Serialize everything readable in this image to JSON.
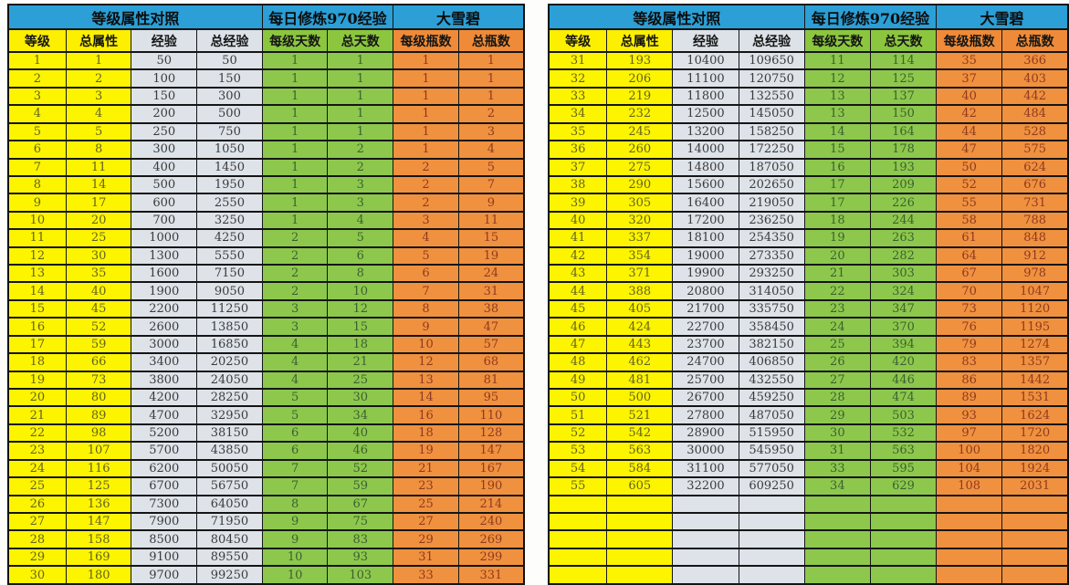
{
  "colors": {
    "header_blue": "#2B9FD6",
    "level_yellow": "#FDF400",
    "exp_gray": "#DDE3E9",
    "days_green": "#8DC84D",
    "bottles_orange": "#F0913F",
    "grid_line": "#151515"
  },
  "chart_data": [
    {
      "type": "table",
      "title": "等级属性对照 1-30",
      "group_headers": [
        {
          "label": "等级属性对照",
          "span": 4
        },
        {
          "label": "每日修炼970经验",
          "span": 2
        },
        {
          "label": "大雪碧",
          "span": 2
        }
      ],
      "columns": [
        "等级",
        "总属性",
        "经验",
        "总经验",
        "每级天数",
        "总天数",
        "每级瓶数",
        "总瓶数"
      ],
      "rows": [
        [
          1,
          1,
          50,
          50,
          1,
          1,
          1,
          1
        ],
        [
          2,
          2,
          100,
          150,
          1,
          1,
          1,
          1
        ],
        [
          3,
          3,
          150,
          300,
          1,
          1,
          1,
          1
        ],
        [
          4,
          4,
          200,
          500,
          1,
          1,
          1,
          2
        ],
        [
          5,
          5,
          250,
          750,
          1,
          1,
          1,
          3
        ],
        [
          6,
          8,
          300,
          1050,
          1,
          2,
          1,
          4
        ],
        [
          7,
          11,
          400,
          1450,
          1,
          2,
          2,
          5
        ],
        [
          8,
          14,
          500,
          1950,
          1,
          3,
          2,
          7
        ],
        [
          9,
          17,
          600,
          2550,
          1,
          3,
          2,
          9
        ],
        [
          10,
          20,
          700,
          3250,
          1,
          4,
          3,
          11
        ],
        [
          11,
          25,
          1000,
          4250,
          2,
          5,
          4,
          15
        ],
        [
          12,
          30,
          1300,
          5550,
          2,
          6,
          5,
          19
        ],
        [
          13,
          35,
          1600,
          7150,
          2,
          8,
          6,
          24
        ],
        [
          14,
          40,
          1900,
          9050,
          2,
          10,
          7,
          31
        ],
        [
          15,
          45,
          2200,
          11250,
          3,
          12,
          8,
          38
        ],
        [
          16,
          52,
          2600,
          13850,
          3,
          15,
          9,
          47
        ],
        [
          17,
          59,
          3000,
          16850,
          4,
          18,
          10,
          57
        ],
        [
          18,
          66,
          3400,
          20250,
          4,
          21,
          12,
          68
        ],
        [
          19,
          73,
          3800,
          24050,
          4,
          25,
          13,
          81
        ],
        [
          20,
          80,
          4200,
          28250,
          5,
          30,
          14,
          95
        ],
        [
          21,
          89,
          4700,
          32950,
          5,
          34,
          16,
          110
        ],
        [
          22,
          98,
          5200,
          38150,
          6,
          40,
          18,
          128
        ],
        [
          23,
          107,
          5700,
          43850,
          6,
          46,
          19,
          147
        ],
        [
          24,
          116,
          6200,
          50050,
          7,
          52,
          21,
          167
        ],
        [
          25,
          125,
          6700,
          56750,
          7,
          59,
          23,
          190
        ],
        [
          26,
          136,
          7300,
          64050,
          8,
          67,
          25,
          214
        ],
        [
          27,
          147,
          7900,
          71950,
          9,
          75,
          27,
          240
        ],
        [
          28,
          158,
          8500,
          80450,
          9,
          83,
          29,
          269
        ],
        [
          29,
          169,
          9100,
          89550,
          10,
          93,
          31,
          299
        ],
        [
          30,
          180,
          9700,
          99250,
          10,
          103,
          33,
          331
        ]
      ],
      "empty_rows": 0
    },
    {
      "type": "table",
      "title": "等级属性对照 31-55",
      "group_headers": [
        {
          "label": "等级属性对照",
          "span": 4
        },
        {
          "label": "每日修炼970经验",
          "span": 2
        },
        {
          "label": "大雪碧",
          "span": 2
        }
      ],
      "columns": [
        "等级",
        "总属性",
        "经验",
        "总经验",
        "每级天数",
        "总天数",
        "每级瓶数",
        "总瓶数"
      ],
      "rows": [
        [
          31,
          193,
          10400,
          109650,
          11,
          114,
          35,
          366
        ],
        [
          32,
          206,
          11100,
          120750,
          12,
          125,
          37,
          403
        ],
        [
          33,
          219,
          11800,
          132550,
          13,
          137,
          40,
          442
        ],
        [
          34,
          232,
          12500,
          145050,
          13,
          150,
          42,
          484
        ],
        [
          35,
          245,
          13200,
          158250,
          14,
          164,
          44,
          528
        ],
        [
          36,
          260,
          14000,
          172250,
          15,
          178,
          47,
          575
        ],
        [
          37,
          275,
          14800,
          187050,
          16,
          193,
          50,
          624
        ],
        [
          38,
          290,
          15600,
          202650,
          17,
          209,
          52,
          676
        ],
        [
          39,
          305,
          16400,
          219050,
          17,
          226,
          55,
          731
        ],
        [
          40,
          320,
          17200,
          236250,
          18,
          244,
          58,
          788
        ],
        [
          41,
          337,
          18100,
          254350,
          19,
          263,
          61,
          848
        ],
        [
          42,
          354,
          19000,
          273350,
          20,
          282,
          64,
          912
        ],
        [
          43,
          371,
          19900,
          293250,
          21,
          303,
          67,
          978
        ],
        [
          44,
          388,
          20800,
          314050,
          22,
          324,
          70,
          1047
        ],
        [
          45,
          405,
          21700,
          335750,
          23,
          347,
          73,
          1120
        ],
        [
          46,
          424,
          22700,
          358450,
          24,
          370,
          76,
          1195
        ],
        [
          47,
          443,
          23700,
          382150,
          25,
          394,
          79,
          1274
        ],
        [
          48,
          462,
          24700,
          406850,
          26,
          420,
          83,
          1357
        ],
        [
          49,
          481,
          25700,
          432550,
          27,
          446,
          86,
          1442
        ],
        [
          50,
          500,
          26700,
          459250,
          28,
          474,
          89,
          1531
        ],
        [
          51,
          521,
          27800,
          487050,
          29,
          503,
          93,
          1624
        ],
        [
          52,
          542,
          28900,
          515950,
          30,
          532,
          97,
          1720
        ],
        [
          53,
          563,
          30000,
          545950,
          31,
          563,
          100,
          1820
        ],
        [
          54,
          584,
          31100,
          577050,
          33,
          595,
          104,
          1924
        ],
        [
          55,
          605,
          32200,
          609250,
          34,
          629,
          108,
          2031
        ]
      ],
      "empty_rows": 5
    }
  ]
}
